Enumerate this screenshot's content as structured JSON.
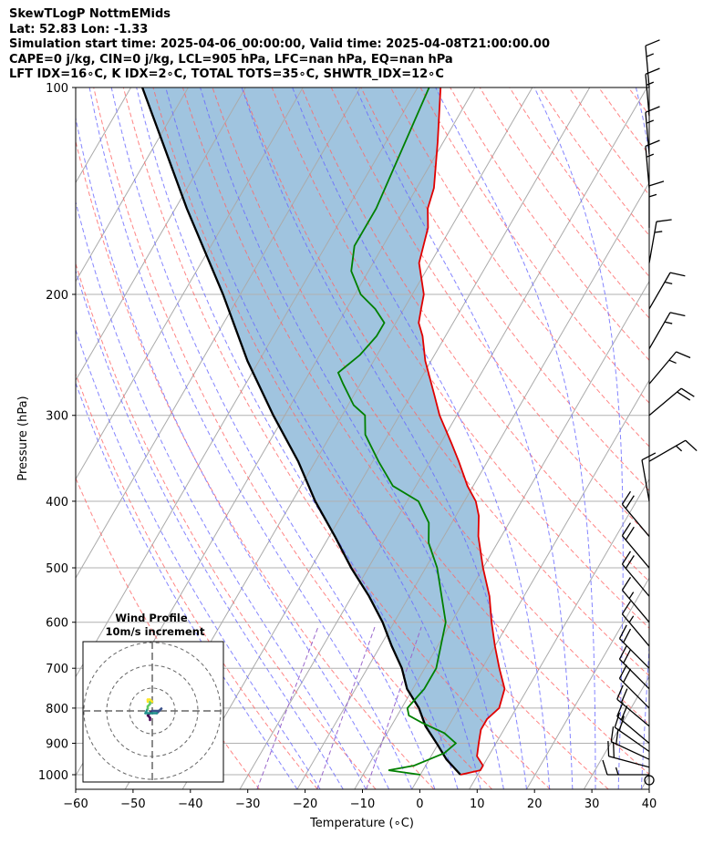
{
  "header": {
    "line1": "SkewTLogP NottmEMids",
    "line2": "Lat: 52.83   Lon: -1.33",
    "line3": "Simulation start time: 2025-04-06_00:00:00, Valid time: 2025-04-08T21:00:00.00",
    "line4": "CAPE=0 j/kg, CIN=0 j/kg, LCL=905 hPa, LFC=nan hPa, EQ=nan hPa",
    "line5": "LFT IDX=16∘C, K IDX=2∘C, TOTAL TOTS=35∘C, SHWTR_IDX=12∘C"
  },
  "chart_data": {
    "type": "line",
    "skew_t": {
      "xlabel": "Temperature (∘C)",
      "ylabel": "Pressure (hPa)",
      "xlim": [
        -60,
        40
      ],
      "ylim_hpa": [
        1040,
        100
      ],
      "log_y": true,
      "grid": true,
      "x_ticks": [
        "−60",
        "−50",
        "−40",
        "−30",
        "−20",
        "−10",
        "0",
        "10",
        "20",
        "30",
        "40"
      ],
      "y_ticks": [
        "1000",
        "900",
        "800",
        "700",
        "600",
        "500",
        "400",
        "300",
        "200",
        "100"
      ],
      "temperature": {
        "color": "#e00000",
        "points": [
          [
            1000,
            7
          ],
          [
            985,
            10
          ],
          [
            970,
            10
          ],
          [
            940,
            8
          ],
          [
            900,
            7
          ],
          [
            860,
            6
          ],
          [
            830,
            6
          ],
          [
            800,
            7
          ],
          [
            750,
            6
          ],
          [
            700,
            3
          ],
          [
            650,
            0
          ],
          [
            600,
            -3
          ],
          [
            550,
            -6
          ],
          [
            500,
            -10
          ],
          [
            450,
            -14
          ],
          [
            420,
            -16
          ],
          [
            400,
            -18
          ],
          [
            380,
            -21
          ],
          [
            350,
            -25
          ],
          [
            330,
            -28
          ],
          [
            300,
            -33
          ],
          [
            280,
            -36
          ],
          [
            250,
            -41
          ],
          [
            230,
            -44
          ],
          [
            220,
            -46
          ],
          [
            210,
            -47
          ],
          [
            200,
            -48
          ],
          [
            180,
            -52
          ],
          [
            160,
            -54
          ],
          [
            150,
            -56
          ],
          [
            140,
            -57
          ],
          [
            120,
            -61
          ],
          [
            100,
            -66
          ]
        ]
      },
      "dewpoint": {
        "color": "#008000",
        "points": [
          [
            1000,
            0
          ],
          [
            985,
            -6
          ],
          [
            970,
            -2
          ],
          [
            950,
            0
          ],
          [
            930,
            2
          ],
          [
            900,
            3
          ],
          [
            870,
            0
          ],
          [
            840,
            -5
          ],
          [
            820,
            -8
          ],
          [
            800,
            -9
          ],
          [
            750,
            -8
          ],
          [
            700,
            -8
          ],
          [
            600,
            -11
          ],
          [
            500,
            -18
          ],
          [
            460,
            -22
          ],
          [
            430,
            -24
          ],
          [
            400,
            -28
          ],
          [
            380,
            -34
          ],
          [
            350,
            -39
          ],
          [
            320,
            -44
          ],
          [
            300,
            -46
          ],
          [
            290,
            -49
          ],
          [
            270,
            -53
          ],
          [
            260,
            -55
          ],
          [
            245,
            -53
          ],
          [
            230,
            -52
          ],
          [
            220,
            -52
          ],
          [
            210,
            -55
          ],
          [
            200,
            -59
          ],
          [
            185,
            -63
          ],
          [
            170,
            -65
          ],
          [
            150,
            -65
          ],
          [
            100,
            -68
          ]
        ]
      },
      "parcel_profile": {
        "color": "#000000",
        "points": [
          [
            1000,
            7
          ],
          [
            950,
            3
          ],
          [
            905,
            0
          ],
          [
            850,
            -4
          ],
          [
            800,
            -7
          ],
          [
            750,
            -11
          ],
          [
            700,
            -14
          ],
          [
            650,
            -18
          ],
          [
            600,
            -22
          ],
          [
            550,
            -27
          ],
          [
            500,
            -33
          ],
          [
            450,
            -39
          ],
          [
            400,
            -46
          ],
          [
            350,
            -53
          ],
          [
            300,
            -62
          ],
          [
            250,
            -72
          ],
          [
            200,
            -83
          ],
          [
            150,
            -98
          ],
          [
            120,
            -109
          ],
          [
            100,
            -118
          ]
        ]
      },
      "shaded_region": "cin-cape area between temperature and parcel profile",
      "shade_color": "#a0c4df",
      "isotherms": {
        "color": "#aaaaaa",
        "style": "solid"
      },
      "dry_adiabats": {
        "color": "#ff6666",
        "style": "dashed"
      },
      "moist_adiabats": {
        "color": "#6666ff",
        "style": "dashed"
      },
      "mixing_ratio": {
        "color": "#9966cc",
        "style": "dashed"
      },
      "wind_barbs": [
        {
          "p": 1000,
          "speed_kt": 15,
          "dir": 270
        },
        {
          "p": 975,
          "speed_kt": 20,
          "dir": 285
        },
        {
          "p": 950,
          "speed_kt": 20,
          "dir": 295
        },
        {
          "p": 925,
          "speed_kt": 20,
          "dir": 305
        },
        {
          "p": 900,
          "speed_kt": 20,
          "dir": 310
        },
        {
          "p": 850,
          "speed_kt": 20,
          "dir": 310
        },
        {
          "p": 800,
          "speed_kt": 20,
          "dir": 315
        },
        {
          "p": 750,
          "speed_kt": 20,
          "dir": 315
        },
        {
          "p": 700,
          "speed_kt": 20,
          "dir": 315
        },
        {
          "p": 650,
          "speed_kt": 15,
          "dir": 320
        },
        {
          "p": 600,
          "speed_kt": 15,
          "dir": 320
        },
        {
          "p": 550,
          "speed_kt": 20,
          "dir": 320
        },
        {
          "p": 500,
          "speed_kt": 20,
          "dir": 320
        },
        {
          "p": 450,
          "speed_kt": 20,
          "dir": 320
        },
        {
          "p": 400,
          "speed_kt": 10,
          "dir": 350
        },
        {
          "p": 350,
          "speed_kt": 15,
          "dir": 60
        },
        {
          "p": 300,
          "speed_kt": 20,
          "dir": 50
        },
        {
          "p": 270,
          "speed_kt": 15,
          "dir": 40
        },
        {
          "p": 240,
          "speed_kt": 15,
          "dir": 30
        },
        {
          "p": 210,
          "speed_kt": 15,
          "dir": 30
        },
        {
          "p": 180,
          "speed_kt": 15,
          "dir": 10
        },
        {
          "p": 160,
          "speed_kt": 15,
          "dir": 0
        },
        {
          "p": 140,
          "speed_kt": 15,
          "dir": 355
        },
        {
          "p": 125,
          "speed_kt": 15,
          "dir": 355
        },
        {
          "p": 110,
          "speed_kt": 15,
          "dir": 355
        },
        {
          "p": 100,
          "speed_kt": 15,
          "dir": 355
        }
      ]
    },
    "hodograph": {
      "title_line1": "Wind Profile",
      "title_line2": "10m/s increment",
      "ring_step_ms": 10,
      "colormap": [
        "#440154",
        "#3b528b",
        "#21918c",
        "#5ec962",
        "#fde725"
      ],
      "uv_ms": [
        [
          -1,
          -4
        ],
        [
          -1,
          -3
        ],
        [
          -2,
          -2
        ],
        [
          -1,
          -1
        ],
        [
          0,
          0
        ],
        [
          3,
          0
        ],
        [
          4,
          1
        ],
        [
          3,
          0
        ],
        [
          2,
          -1
        ],
        [
          0,
          -1
        ],
        [
          -3,
          -1
        ],
        [
          -2,
          1
        ],
        [
          -2,
          2
        ],
        [
          -1,
          3
        ],
        [
          -1,
          4
        ],
        [
          0,
          4
        ],
        [
          -1,
          5
        ],
        [
          -2,
          5
        ],
        [
          -2,
          4
        ]
      ]
    }
  }
}
